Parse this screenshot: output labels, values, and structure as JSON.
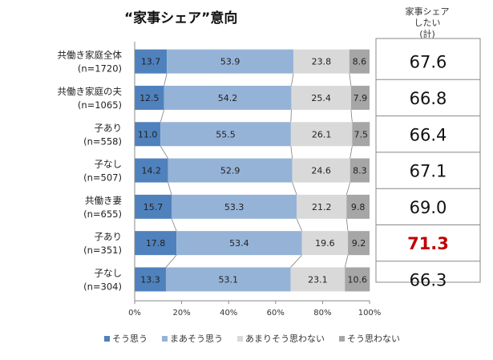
{
  "chart_data": {
    "type": "bar",
    "orientation": "horizontal",
    "stacked": "percent",
    "title": "“家事シェア”意向",
    "side_header": [
      "家事シェア",
      "したい",
      "(計)"
    ],
    "categories": [
      [
        "共働き家庭全体",
        "(n=1720)"
      ],
      [
        "共働き家庭の夫",
        "(n=1065)"
      ],
      [
        "子あり",
        "(n=558)"
      ],
      [
        "子なし",
        "(n=507)"
      ],
      [
        "共働き妻",
        "(n=655)"
      ],
      [
        "子あり",
        "(n=351)"
      ],
      [
        "子なし",
        "(n=304)"
      ]
    ],
    "series": [
      {
        "name": "そう思う",
        "color": "#4f81bd",
        "values": [
          13.7,
          12.5,
          11.0,
          14.2,
          15.7,
          17.8,
          13.3
        ]
      },
      {
        "name": "まあそう思う",
        "color": "#95b3d7",
        "values": [
          53.9,
          54.2,
          55.5,
          52.9,
          53.3,
          53.4,
          53.1
        ]
      },
      {
        "name": "あまりそう思わない",
        "color": "#d9d9d9",
        "values": [
          23.8,
          25.4,
          26.1,
          24.6,
          21.2,
          19.6,
          23.1
        ]
      },
      {
        "name": "そう思わない",
        "color": "#a6a6a6",
        "values": [
          8.6,
          7.9,
          7.5,
          8.3,
          9.8,
          9.2,
          10.6
        ]
      }
    ],
    "value_labels": [
      [
        "13.7",
        "53.9",
        "23.8",
        "8.6"
      ],
      [
        "12.5",
        "54.2",
        "25.4",
        "7.9"
      ],
      [
        "11.0",
        "55.5",
        "26.1",
        "7.5"
      ],
      [
        "14.2",
        "52.9",
        "24.6",
        "8.3"
      ],
      [
        "15.7",
        "53.3",
        "21.2",
        "9.8"
      ],
      [
        "17.8",
        "53.4",
        "19.6",
        "9.2"
      ],
      [
        "13.3",
        "53.1",
        "23.1",
        "10.6"
      ]
    ],
    "totals": [
      "67.6",
      "66.8",
      "66.4",
      "67.1",
      "69.0",
      "71.3",
      "66.3"
    ],
    "highlight_total_index": 5,
    "highlight_color": "#c00000",
    "xlim": [
      0,
      100
    ],
    "x_ticks": [
      "0%",
      "20%",
      "40%",
      "60%",
      "80%",
      "100%"
    ],
    "legend_position": "bottom"
  }
}
